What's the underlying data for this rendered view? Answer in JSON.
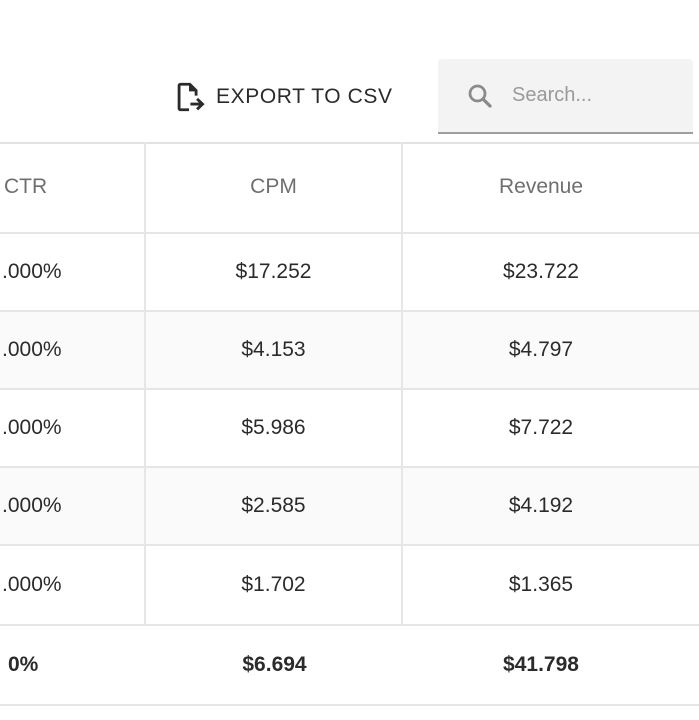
{
  "toolbar": {
    "export_label": "EXPORT TO CSV",
    "export_icon": "file-export-icon",
    "search_icon": "search-icon",
    "search_placeholder": "Search...",
    "search_value": ""
  },
  "table": {
    "columns": [
      "CTR",
      "CPM",
      "Revenue"
    ],
    "rows": [
      {
        "ctr": ".000%",
        "cpm": "$17.252",
        "revenue": "$23.722"
      },
      {
        "ctr": ".000%",
        "cpm": "$4.153",
        "revenue": "$4.797"
      },
      {
        "ctr": ".000%",
        "cpm": "$5.986",
        "revenue": "$7.722"
      },
      {
        "ctr": ".000%",
        "cpm": "$2.585",
        "revenue": "$4.192"
      },
      {
        "ctr": ".000%",
        "cpm": "$1.702",
        "revenue": "$1.365"
      }
    ],
    "totals": {
      "ctr": "0%",
      "cpm": "$6.694",
      "revenue": "$41.798"
    }
  },
  "colors": {
    "text": "#2b2b2b",
    "header_text": "#6f6f6f",
    "border": "#e6e6e6",
    "search_bg": "#f3f3f3",
    "placeholder": "#9a9a9a"
  }
}
